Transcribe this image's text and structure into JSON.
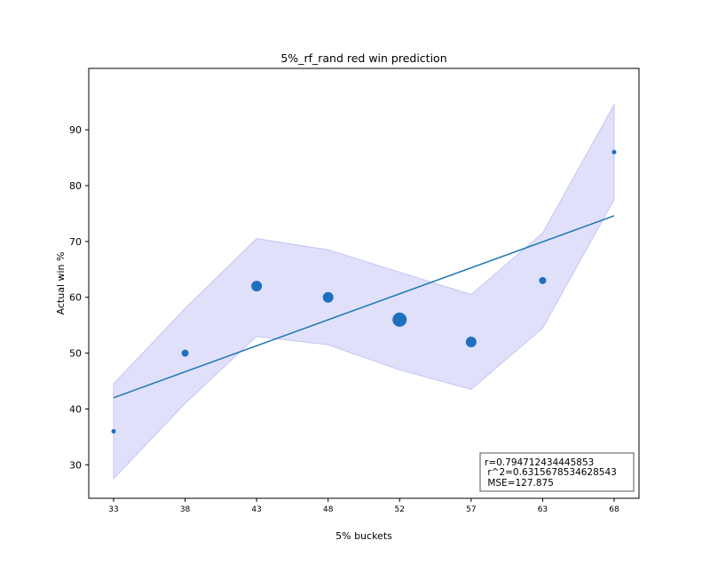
{
  "chart_data": {
    "type": "scatter",
    "title": "5%_rf_rand red win prediction",
    "xlabel": "5% buckets",
    "ylabel": "Actual win %",
    "x_ticks": [
      "33",
      "38",
      "43",
      "48",
      "52",
      "57",
      "63",
      "68"
    ],
    "y_ticks": [
      30,
      40,
      50,
      60,
      70,
      80,
      90
    ],
    "ylim": [
      24,
      101
    ],
    "grid": false,
    "points": [
      {
        "x": 33,
        "y": 36,
        "size": "small"
      },
      {
        "x": 38,
        "y": 50,
        "size": "medium"
      },
      {
        "x": 43,
        "y": 62,
        "size": "large"
      },
      {
        "x": 48,
        "y": 60,
        "size": "large"
      },
      {
        "x": 52,
        "y": 56,
        "size": "xlarge"
      },
      {
        "x": 57,
        "y": 52,
        "size": "large"
      },
      {
        "x": 63,
        "y": 63,
        "size": "medium"
      },
      {
        "x": 68,
        "y": 86,
        "size": "small"
      }
    ],
    "fit_line": {
      "x": [
        33,
        68
      ],
      "y": [
        42.0,
        74.6
      ]
    },
    "confidence_band": {
      "upper": [
        44.5,
        58.0,
        70.5,
        68.5,
        64.5,
        60.5,
        71.5,
        94.5
      ],
      "lower": [
        27.5,
        41.0,
        53.0,
        51.5,
        47.0,
        43.5,
        54.5,
        77.5
      ]
    },
    "stats_box": {
      "line1": "r=0.794712434445853",
      "line2": " r^2=0.6315678534628543",
      "line3": " MSE=127.875",
      "placement": "bottom-right"
    },
    "colors": {
      "points": "#1f6fbf",
      "fit_line": "#1f77b4",
      "band_fill": "#e0e0fb",
      "band_edge": "#c5c5f3"
    }
  }
}
